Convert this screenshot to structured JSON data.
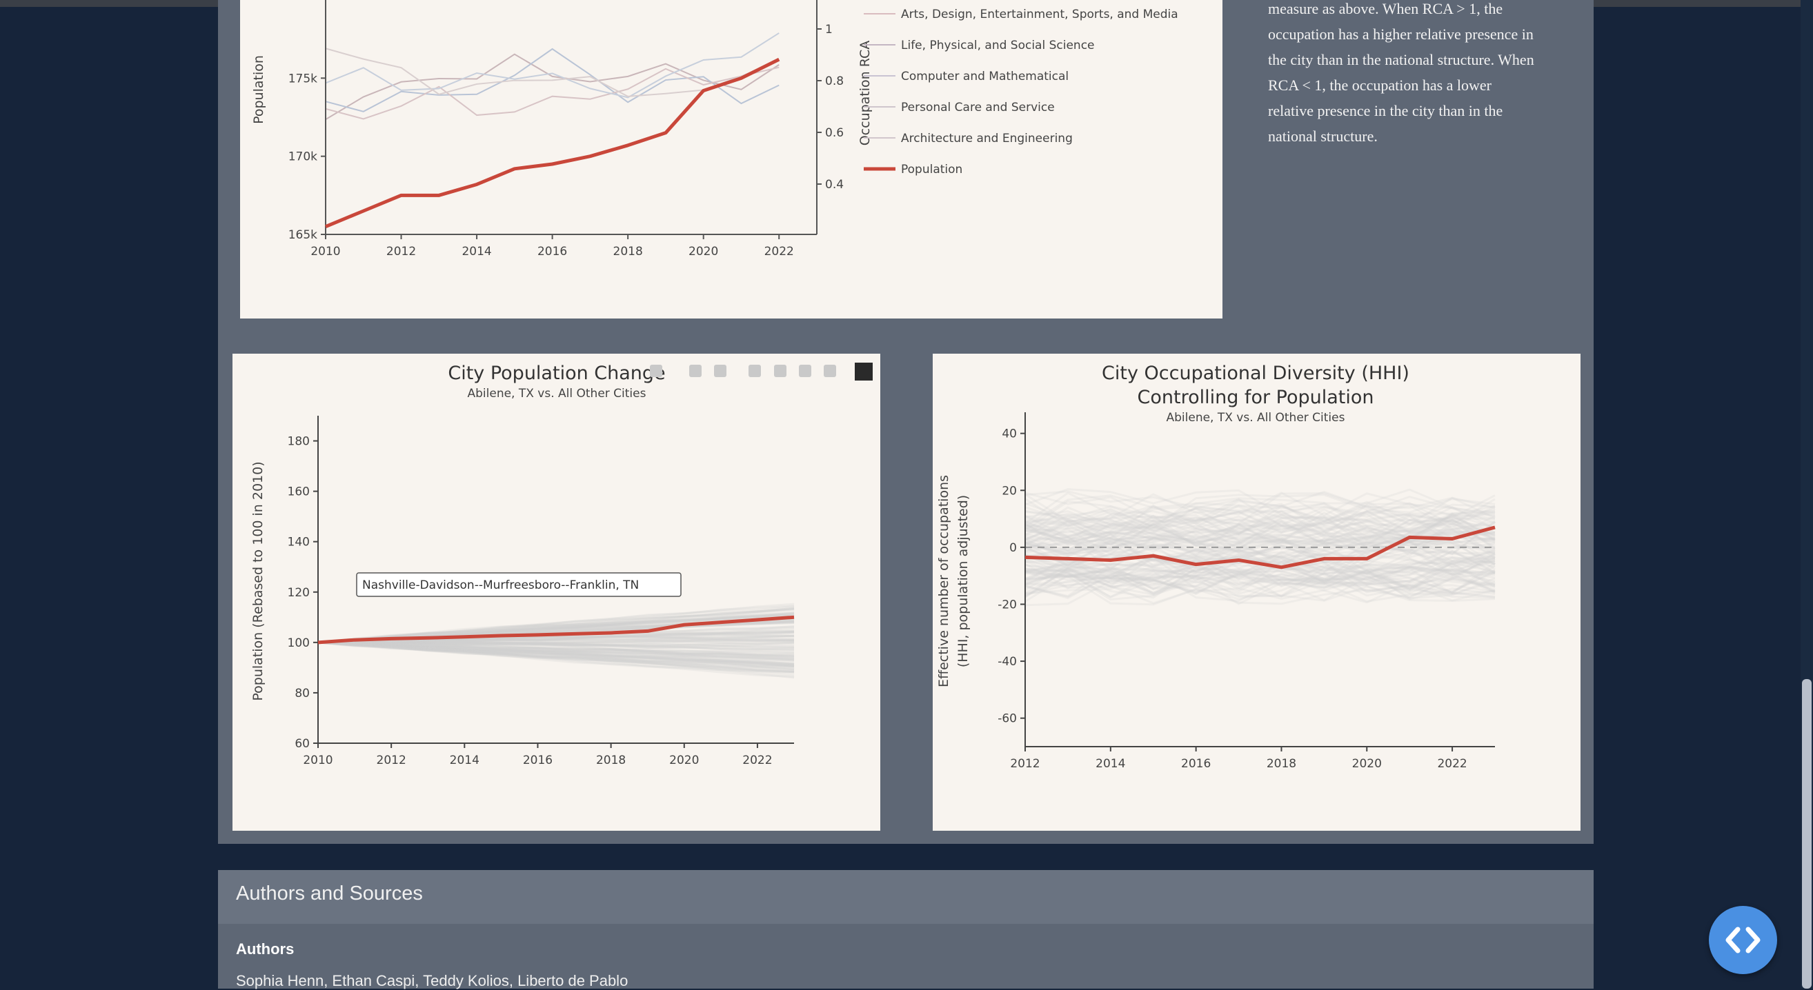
{
  "description": {
    "lines": [
      "measure as above. When RCA > 1, the",
      "occupation has a higher relative presence in",
      "the city than in the national structure. When",
      "RCA < 1, the occupation has a lower",
      "relative presence in the city than in the",
      "national structure."
    ]
  },
  "top_chart": {
    "ylabel": "Population",
    "y2label": "Occupation RCA",
    "yticks": [
      "175k",
      "170k",
      "165k"
    ],
    "y2ticks": [
      "1",
      "0.8",
      "0.6",
      "0.4"
    ],
    "xticks": [
      "2010",
      "2012",
      "2014",
      "2016",
      "2018",
      "2020",
      "2022"
    ],
    "legend": [
      "Arts, Design, Entertainment, Sports, and Media",
      "Life, Physical, and Social Science",
      "Computer and Mathematical",
      "Personal Care and Service",
      "Architecture and Engineering",
      "Population"
    ]
  },
  "pop_chart": {
    "title": "City Population Change",
    "subtitle": "Abilene, TX vs. All Other Cities",
    "ylabel": "Population (Rebased to 100 in 2010)",
    "yticks": [
      "180",
      "160",
      "140",
      "120",
      "100",
      "80",
      "60"
    ],
    "xticks": [
      "2010",
      "2012",
      "2014",
      "2016",
      "2018",
      "2020",
      "2022"
    ],
    "tooltip": "Nashville-Davidson--Murfreesboro--Franklin, TN"
  },
  "hhi_chart": {
    "title_line1": "City Occupational Diversity (HHI)",
    "title_line2": "Controlling for Population",
    "subtitle": "Abilene, TX vs. All Other Cities",
    "ylabel_line1": "Effective number of occupations",
    "ylabel_line2": "(HHI, population adjusted)",
    "yticks": [
      "40",
      "20",
      "0",
      "-20",
      "-40",
      "-60"
    ],
    "xticks": [
      "2012",
      "2014",
      "2016",
      "2018",
      "2020",
      "2022"
    ]
  },
  "authors": {
    "header": "Authors and Sources",
    "label": "Authors",
    "names": "Sophia Henn, Ethan Caspi, Teddy Kolios, Liberto de Pablo"
  },
  "colors": {
    "accent_line": "#c9473a",
    "background": "#16243a",
    "panel": "#5e6775",
    "card": "#f8f4ef"
  },
  "chart_data": [
    {
      "type": "line",
      "title": "",
      "xlabel": "",
      "ylabel": "Population",
      "y2label": "Occupation RCA",
      "xlim": [
        2010,
        2023
      ],
      "ylim": [
        165000,
        180000
      ],
      "series": [
        {
          "name": "Population",
          "x": [
            2010,
            2011,
            2012,
            2013,
            2014,
            2015,
            2016,
            2017,
            2018,
            2019,
            2020,
            2021,
            2022
          ],
          "values": [
            165500,
            166500,
            167500,
            167500,
            168200,
            169200,
            169500,
            170000,
            170700,
            171500,
            174200,
            175000,
            176200
          ]
        }
      ]
    },
    {
      "type": "line",
      "title": "City Population Change",
      "subtitle": "Abilene, TX vs. All Other Cities",
      "xlabel": "",
      "ylabel": "Population (Rebased to 100 in 2010)",
      "xlim": [
        2010,
        2023
      ],
      "ylim": [
        60,
        190
      ],
      "series": [
        {
          "name": "Abilene, TX",
          "x": [
            2010,
            2011,
            2012,
            2013,
            2014,
            2015,
            2016,
            2017,
            2018,
            2019,
            2020,
            2021,
            2022,
            2023
          ],
          "values": [
            100,
            101,
            101.5,
            101.8,
            102.2,
            102.7,
            103,
            103.4,
            103.8,
            104.5,
            107,
            108,
            109,
            110
          ]
        }
      ]
    },
    {
      "type": "line",
      "title": "City Occupational Diversity (HHI) Controlling for Population",
      "subtitle": "Abilene, TX vs. All Other Cities",
      "xlabel": "",
      "ylabel": "Effective number of occupations (HHI, population adjusted)",
      "xlim": [
        2012,
        2023
      ],
      "ylim": [
        -70,
        45
      ],
      "series": [
        {
          "name": "Abilene, TX",
          "x": [
            2012,
            2013,
            2014,
            2015,
            2016,
            2017,
            2018,
            2019,
            2020,
            2021,
            2022,
            2023
          ],
          "values": [
            -3.5,
            -4,
            -4.5,
            -3,
            -6,
            -4.5,
            -7,
            -4,
            -4,
            3.5,
            3,
            7
          ]
        }
      ]
    }
  ]
}
